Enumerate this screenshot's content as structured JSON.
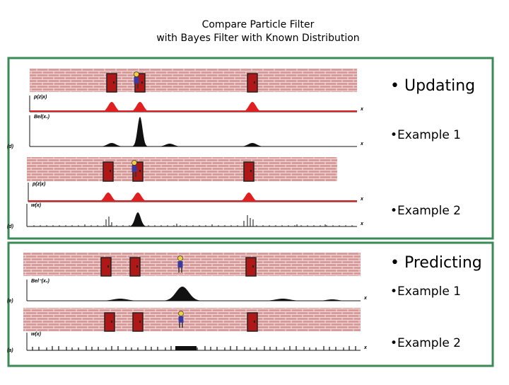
{
  "title": [
    "Compare Particle Filter",
    "with Bayes Filter with Known Distribution"
  ],
  "bullets": [
    "• Updating",
    "•Example 1",
    "•Example 2",
    "• Predicting",
    "•Example 1",
    "•Example 2"
  ],
  "plots": [
    {
      "ylabel": "p(z|x)",
      "xlabel": "x"
    },
    {
      "ylabel": "Bel(x₁)",
      "xlabel": "x",
      "tag": "(d)"
    },
    {
      "ylabel": "p(z|x)",
      "xlabel": "x"
    },
    {
      "ylabel": "w(x)",
      "xlabel": "x",
      "tag": "(d)"
    },
    {
      "ylabel": "Bel⁻(x₂)",
      "xlabel": "x",
      "tag": "(e)"
    },
    {
      "ylabel": "w(x)",
      "xlabel": "x",
      "tag": "(a)"
    }
  ]
}
